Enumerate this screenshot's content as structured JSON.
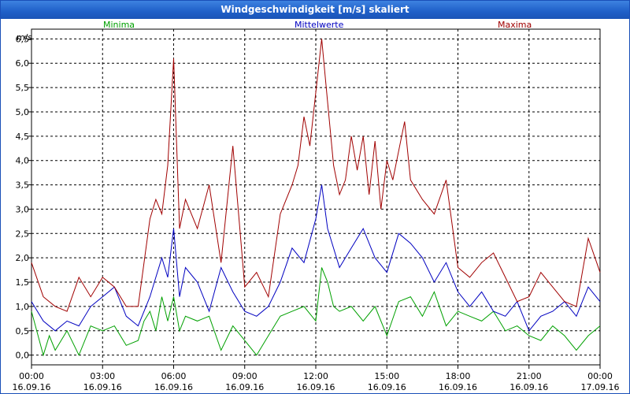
{
  "window": {
    "title": "Windgeschwindigkeit [m/s] skaliert"
  },
  "chart_data": {
    "type": "line",
    "ylabel": "m/s",
    "ylim": [
      -0.2,
      6.7
    ],
    "yticks": [
      0.0,
      0.5,
      1.0,
      1.5,
      2.0,
      2.5,
      3.0,
      3.5,
      4.0,
      4.5,
      5.0,
      5.5,
      6.0,
      6.5
    ],
    "ytick_labels": [
      "0,0",
      "0,5",
      "1,0",
      "1,5",
      "2,0",
      "2,5",
      "3,0",
      "3,5",
      "4,0",
      "4,5",
      "5,0",
      "5,5",
      "6,0",
      "6,5"
    ],
    "xlim": [
      0,
      24
    ],
    "xticks": [
      0,
      3,
      6,
      9,
      12,
      15,
      18,
      21,
      24
    ],
    "xtick_labels": [
      [
        "00:00",
        "16.09.16"
      ],
      [
        "03:00",
        "16.09.16"
      ],
      [
        "06:00",
        "16.09.16"
      ],
      [
        "09:00",
        "16.09.16"
      ],
      [
        "12:00",
        "16.09.16"
      ],
      [
        "15:00",
        "16.09.16"
      ],
      [
        "18:00",
        "16.09.16"
      ],
      [
        "21:00",
        "16.09.16"
      ],
      [
        "00:00",
        "17.09.16"
      ]
    ],
    "grid": true,
    "legend": "top",
    "series": [
      {
        "name": "Minima",
        "color": "#00a000",
        "x": [
          0,
          0.5,
          0.75,
          1,
          1.5,
          2,
          2.5,
          3,
          3.5,
          4,
          4.5,
          4.75,
          5,
          5.25,
          5.5,
          5.75,
          6,
          6.25,
          6.5,
          7,
          7.5,
          8,
          8.5,
          9,
          9.5,
          10,
          10.5,
          11,
          11.5,
          12,
          12.25,
          12.5,
          12.75,
          13,
          13.5,
          14,
          14.5,
          15,
          15.5,
          16,
          16.5,
          17,
          17.5,
          18,
          18.5,
          19,
          19.5,
          20,
          20.5,
          21,
          21.5,
          22,
          22.5,
          23,
          23.5,
          24
        ],
        "y": [
          0.9,
          0.0,
          0.4,
          0.1,
          0.5,
          0.0,
          0.6,
          0.5,
          0.6,
          0.2,
          0.3,
          0.7,
          0.9,
          0.5,
          1.2,
          0.7,
          1.2,
          0.5,
          0.8,
          0.7,
          0.8,
          0.1,
          0.6,
          0.3,
          0.0,
          0.4,
          0.8,
          0.9,
          1.0,
          0.7,
          1.8,
          1.5,
          1.0,
          0.9,
          1.0,
          0.7,
          1.0,
          0.4,
          1.1,
          1.2,
          0.8,
          1.3,
          0.6,
          0.9,
          0.8,
          0.7,
          0.9,
          0.5,
          0.6,
          0.4,
          0.3,
          0.6,
          0.4,
          0.1,
          0.4,
          0.6
        ]
      },
      {
        "name": "Mittelwerte",
        "color": "#0000c0",
        "x": [
          0,
          0.5,
          1,
          1.5,
          2,
          2.5,
          3,
          3.5,
          4,
          4.5,
          5,
          5.25,
          5.5,
          5.75,
          6,
          6.25,
          6.5,
          7,
          7.5,
          8,
          8.5,
          9,
          9.5,
          10,
          10.5,
          11,
          11.5,
          12,
          12.25,
          12.5,
          13,
          13.5,
          14,
          14.5,
          15,
          15.5,
          16,
          16.5,
          17,
          17.5,
          18,
          18.5,
          19,
          19.5,
          20,
          20.5,
          21,
          21.5,
          22,
          22.5,
          23,
          23.5,
          24
        ],
        "y": [
          1.1,
          0.7,
          0.5,
          0.7,
          0.6,
          1.0,
          1.2,
          1.4,
          0.8,
          0.6,
          1.2,
          1.6,
          2.0,
          1.6,
          2.6,
          1.2,
          1.8,
          1.5,
          0.9,
          1.8,
          1.3,
          0.9,
          0.8,
          1.0,
          1.5,
          2.2,
          1.9,
          2.8,
          3.5,
          2.6,
          1.8,
          2.2,
          2.6,
          2.0,
          1.7,
          2.5,
          2.3,
          2.0,
          1.5,
          1.9,
          1.3,
          1.0,
          1.3,
          0.9,
          0.8,
          1.1,
          0.5,
          0.8,
          0.9,
          1.1,
          0.8,
          1.4,
          1.1
        ]
      },
      {
        "name": "Maxima",
        "color": "#a00000",
        "x": [
          0,
          0.5,
          1,
          1.5,
          2,
          2.5,
          3,
          3.5,
          4,
          4.5,
          5,
          5.25,
          5.5,
          5.75,
          6,
          6.25,
          6.5,
          7,
          7.5,
          8,
          8.5,
          9,
          9.5,
          10,
          10.5,
          11,
          11.25,
          11.5,
          11.75,
          12,
          12.25,
          12.5,
          12.75,
          13,
          13.25,
          13.5,
          13.75,
          14,
          14.25,
          14.5,
          14.75,
          15,
          15.25,
          15.5,
          15.75,
          16,
          16.5,
          17,
          17.5,
          18,
          18.5,
          19,
          19.5,
          20,
          20.5,
          21,
          21.5,
          22,
          22.5,
          23,
          23.5,
          24
        ],
        "y": [
          1.9,
          1.2,
          1.0,
          0.9,
          1.6,
          1.2,
          1.6,
          1.4,
          1.0,
          1.0,
          2.8,
          3.2,
          2.9,
          3.9,
          6.1,
          2.6,
          3.2,
          2.6,
          3.5,
          1.9,
          4.3,
          1.4,
          1.7,
          1.2,
          2.9,
          3.5,
          3.9,
          4.9,
          4.3,
          5.4,
          6.5,
          5.2,
          3.9,
          3.3,
          3.6,
          4.5,
          3.8,
          4.5,
          3.3,
          4.4,
          3.0,
          4.0,
          3.6,
          4.2,
          4.8,
          3.6,
          3.2,
          2.9,
          3.6,
          1.8,
          1.6,
          1.9,
          2.1,
          1.6,
          1.1,
          1.2,
          1.7,
          1.4,
          1.1,
          1.0,
          2.4,
          1.7
        ]
      }
    ]
  }
}
